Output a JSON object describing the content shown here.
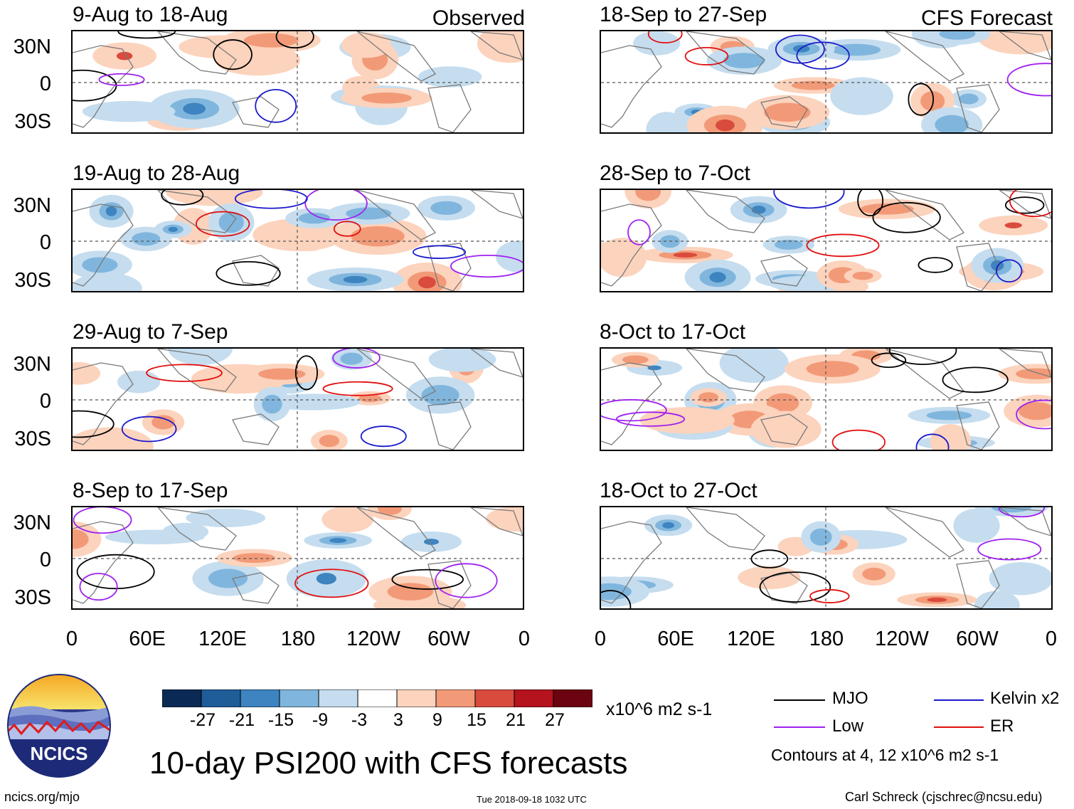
{
  "panels": {
    "observed": [
      {
        "title": "9-Aug to 18-Aug",
        "tag": "Observed"
      },
      {
        "title": "19-Aug to 28-Aug"
      },
      {
        "title": "29-Aug to 7-Sep"
      },
      {
        "title": "8-Sep to 17-Sep"
      }
    ],
    "forecast": [
      {
        "title": "18-Sep to 27-Sep",
        "tag": "CFS Forecast"
      },
      {
        "title": "28-Sep to 7-Oct"
      },
      {
        "title": "8-Oct to 17-Oct"
      },
      {
        "title": "18-Oct to 27-Oct"
      }
    ]
  },
  "axes": {
    "lat_labels": [
      "30N",
      "0",
      "30S"
    ],
    "lon_labels": [
      "0",
      "60E",
      "120E",
      "180",
      "120W",
      "60W",
      "0"
    ]
  },
  "colorbar": {
    "ticks": [
      "-27",
      "-21",
      "-15",
      "-9",
      "-3",
      "3",
      "9",
      "15",
      "21",
      "27"
    ],
    "units": "x10^6 m2 s-1",
    "colors": [
      "#0a2a55",
      "#1f5d99",
      "#3d84c0",
      "#80b6dd",
      "#c5ddef",
      "#ffffff",
      "#fcd3bd",
      "#f29a78",
      "#d94b3d",
      "#b5131e",
      "#6b0410"
    ]
  },
  "legend": {
    "items": [
      {
        "label": "MJO",
        "color": "#000000"
      },
      {
        "label": "Kelvin x2",
        "color": "#1a1acc"
      },
      {
        "label": "Low",
        "color": "#a020f0"
      },
      {
        "label": "ER",
        "color": "#e11010"
      }
    ],
    "note": "Contours at 4, 12 x10^6 m2 s-1"
  },
  "footer": {
    "main_title": "10-day PSI200 with CFS forecasts",
    "logo_text": "NCICS",
    "url": "ncics.org/mjo",
    "timestamp": "Tue 2018-09-18 1032 UTC",
    "credit": "Carl Schreck (cjschrec@ncsu.edu)"
  }
}
